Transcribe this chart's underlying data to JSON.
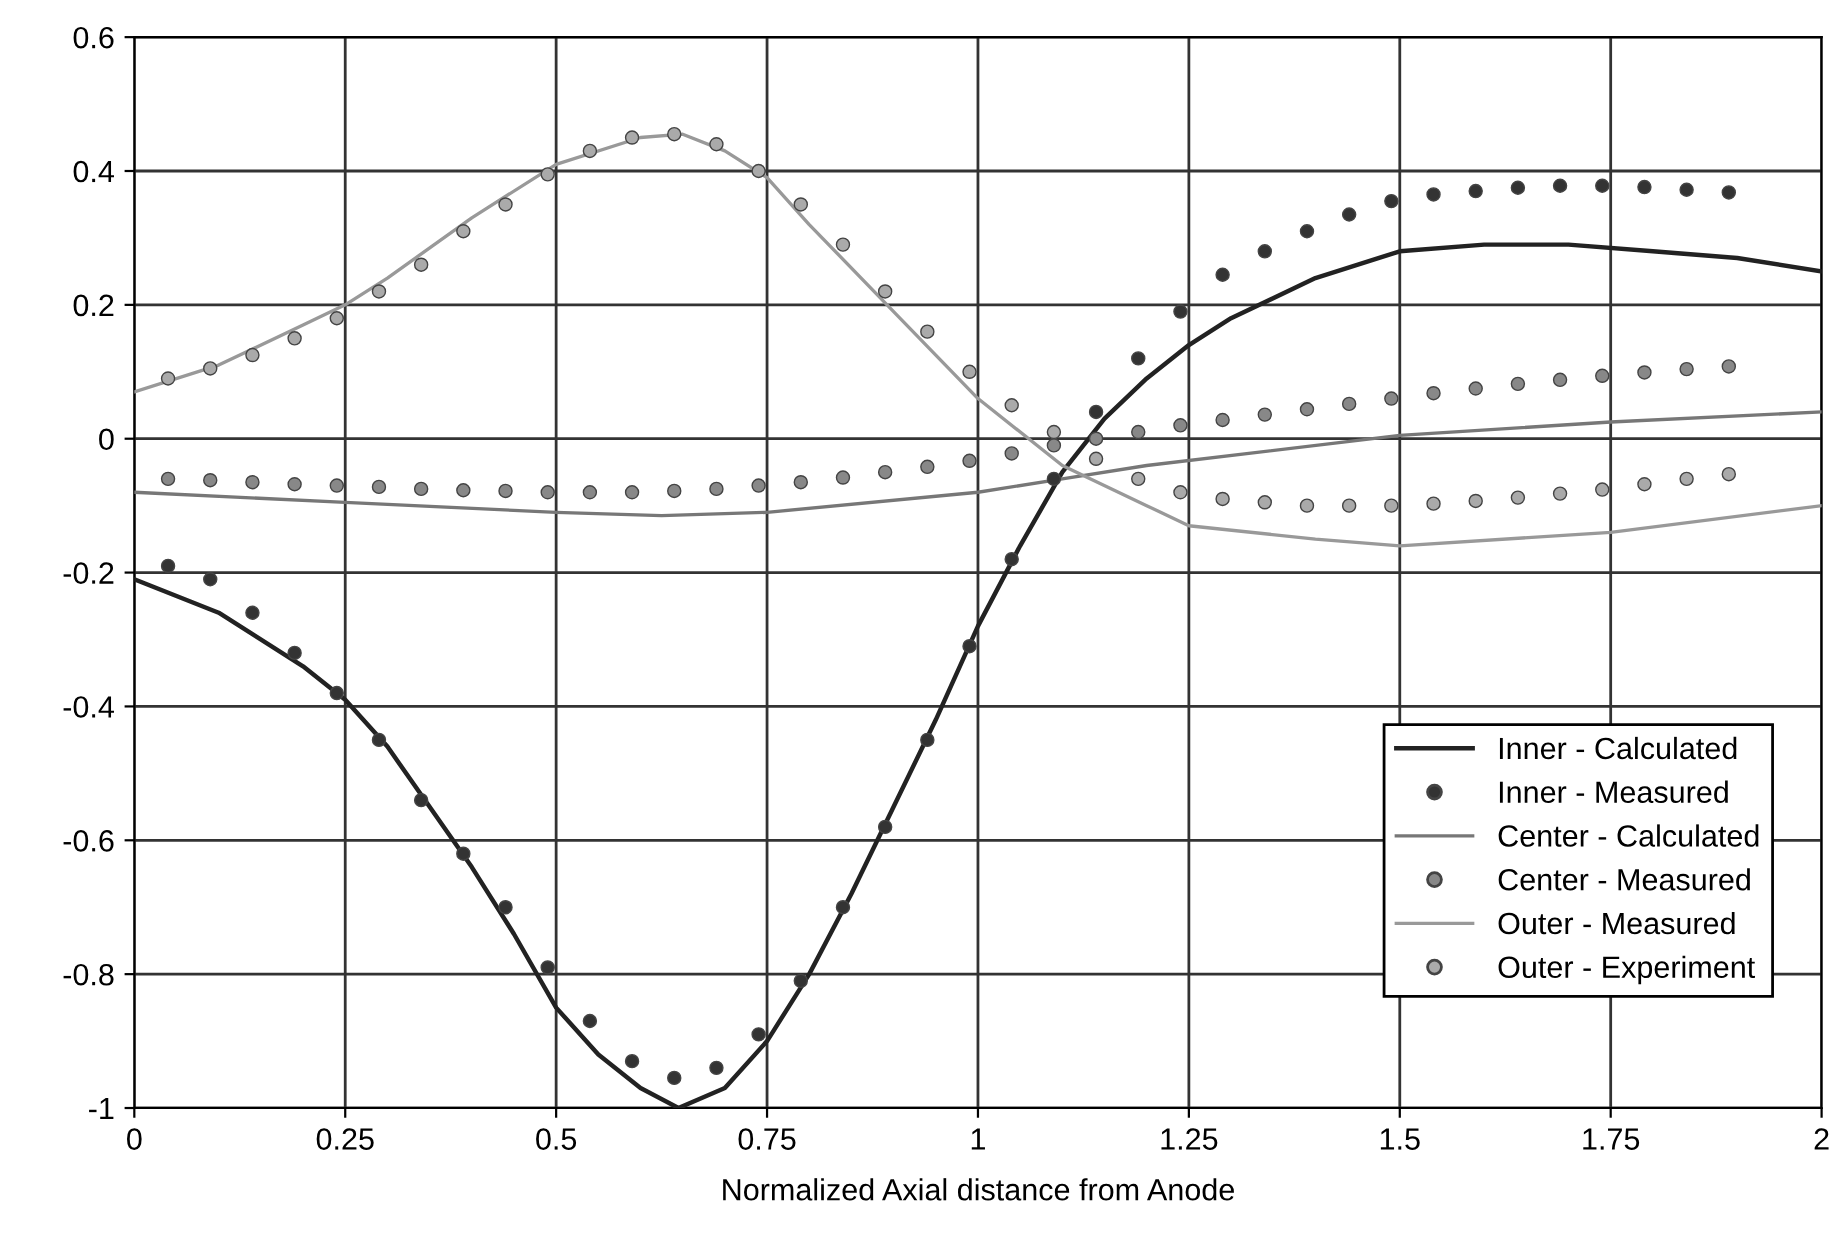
{
  "chart_data": {
    "type": "line",
    "xlabel": "Normalized Axial distance from Anode",
    "xlim": [
      0,
      2
    ],
    "xticks": [
      0,
      0.25,
      0.5,
      0.75,
      1,
      1.25,
      1.5,
      1.75,
      2
    ],
    "ylim": [
      -1,
      0.6
    ],
    "yticks": [
      -1,
      -0.8,
      -0.6,
      -0.4,
      -0.2,
      0,
      0.2,
      0.4,
      0.6
    ],
    "grid": true,
    "legend": "bottom right",
    "series": [
      {
        "name": "Inner - Calculated",
        "marker": "none",
        "color": "#222222",
        "x": [
          0,
          0.1,
          0.2,
          0.25,
          0.3,
          0.35,
          0.4,
          0.45,
          0.5,
          0.55,
          0.6,
          0.645,
          0.7,
          0.75,
          0.8,
          0.85,
          0.9,
          0.95,
          1.0,
          1.05,
          1.1,
          1.15,
          1.2,
          1.25,
          1.3,
          1.4,
          1.5,
          1.6,
          1.7,
          1.8,
          1.9,
          2.0
        ],
        "values": [
          -0.21,
          -0.26,
          -0.34,
          -0.39,
          -0.46,
          -0.55,
          -0.64,
          -0.74,
          -0.85,
          -0.92,
          -0.97,
          -1.0,
          -0.97,
          -0.9,
          -0.8,
          -0.68,
          -0.55,
          -0.42,
          -0.28,
          -0.16,
          -0.05,
          0.03,
          0.09,
          0.14,
          0.18,
          0.24,
          0.28,
          0.29,
          0.29,
          0.28,
          0.27,
          0.25
        ]
      },
      {
        "name": "Inner - Measured",
        "type": "scatter",
        "marker": "circle",
        "color": "#333333",
        "x": [
          0.04,
          0.09,
          0.14,
          0.19,
          0.24,
          0.29,
          0.34,
          0.39,
          0.44,
          0.49,
          0.54,
          0.59,
          0.64,
          0.69,
          0.74,
          0.79,
          0.84,
          0.89,
          0.94,
          0.99,
          1.04,
          1.09,
          1.14,
          1.19,
          1.24,
          1.29,
          1.34,
          1.39,
          1.44,
          1.49,
          1.54,
          1.59,
          1.64,
          1.69,
          1.74,
          1.79,
          1.84,
          1.89
        ],
        "values": [
          -0.19,
          -0.21,
          -0.26,
          -0.32,
          -0.38,
          -0.45,
          -0.54,
          -0.62,
          -0.7,
          -0.79,
          -0.87,
          -0.93,
          -0.955,
          -0.94,
          -0.89,
          -0.81,
          -0.7,
          -0.58,
          -0.45,
          -0.31,
          -0.18,
          -0.06,
          0.04,
          0.12,
          0.19,
          0.245,
          0.28,
          0.31,
          0.335,
          0.355,
          0.365,
          0.37,
          0.375,
          0.378,
          0.378,
          0.376,
          0.372,
          0.368
        ]
      },
      {
        "name": "Center - Calculated",
        "marker": "none",
        "color": "#777777",
        "x": [
          0,
          0.25,
          0.5,
          0.625,
          0.75,
          1.0,
          1.1,
          1.2,
          1.5,
          1.75,
          2.0
        ],
        "values": [
          -0.08,
          -0.095,
          -0.11,
          -0.115,
          -0.11,
          -0.08,
          -0.06,
          -0.04,
          0.005,
          0.025,
          0.04
        ]
      },
      {
        "name": "Center - Measured",
        "type": "scatter",
        "marker": "circle",
        "color": "#888888",
        "x": [
          0.04,
          0.09,
          0.14,
          0.19,
          0.24,
          0.29,
          0.34,
          0.39,
          0.44,
          0.49,
          0.54,
          0.59,
          0.64,
          0.69,
          0.74,
          0.79,
          0.84,
          0.89,
          0.94,
          0.99,
          1.04,
          1.09,
          1.14,
          1.19,
          1.24,
          1.29,
          1.34,
          1.39,
          1.44,
          1.49,
          1.54,
          1.59,
          1.64,
          1.69,
          1.74,
          1.79,
          1.84,
          1.89
        ],
        "values": [
          -0.06,
          -0.062,
          -0.065,
          -0.068,
          -0.07,
          -0.072,
          -0.075,
          -0.077,
          -0.078,
          -0.08,
          -0.08,
          -0.08,
          -0.078,
          -0.075,
          -0.07,
          -0.065,
          -0.058,
          -0.05,
          -0.042,
          -0.033,
          -0.022,
          -0.01,
          0.0,
          0.01,
          0.02,
          0.028,
          0.036,
          0.044,
          0.052,
          0.06,
          0.068,
          0.075,
          0.082,
          0.088,
          0.094,
          0.099,
          0.104,
          0.108
        ]
      },
      {
        "name": "Outer - Measured",
        "marker": "none",
        "color": "#999999",
        "x": [
          0,
          0.1,
          0.2,
          0.25,
          0.3,
          0.4,
          0.5,
          0.6,
          0.65,
          0.7,
          0.75,
          0.8,
          0.9,
          1.0,
          1.1,
          1.2,
          1.25,
          1.4,
          1.5,
          1.75,
          2.0
        ],
        "values": [
          0.07,
          0.11,
          0.17,
          0.2,
          0.24,
          0.33,
          0.41,
          0.45,
          0.455,
          0.43,
          0.39,
          0.32,
          0.19,
          0.06,
          -0.04,
          -0.1,
          -0.13,
          -0.15,
          -0.16,
          -0.14,
          -0.1
        ]
      },
      {
        "name": "Outer - Experiment",
        "type": "scatter",
        "marker": "circle",
        "color": "#aaaaaa",
        "x": [
          0.04,
          0.09,
          0.14,
          0.19,
          0.24,
          0.29,
          0.34,
          0.39,
          0.44,
          0.49,
          0.54,
          0.59,
          0.64,
          0.69,
          0.74,
          0.79,
          0.84,
          0.89,
          0.94,
          0.99,
          1.04,
          1.09,
          1.14,
          1.19,
          1.24,
          1.29,
          1.34,
          1.39,
          1.44,
          1.49,
          1.54,
          1.59,
          1.64,
          1.69,
          1.74,
          1.79,
          1.84,
          1.89
        ],
        "values": [
          0.09,
          0.105,
          0.125,
          0.15,
          0.18,
          0.22,
          0.26,
          0.31,
          0.35,
          0.395,
          0.43,
          0.45,
          0.455,
          0.44,
          0.4,
          0.35,
          0.29,
          0.22,
          0.16,
          0.1,
          0.05,
          0.01,
          -0.03,
          -0.06,
          -0.08,
          -0.09,
          -0.095,
          -0.1,
          -0.1,
          -0.1,
          -0.097,
          -0.093,
          -0.088,
          -0.082,
          -0.076,
          -0.068,
          -0.06,
          -0.053
        ]
      }
    ]
  }
}
